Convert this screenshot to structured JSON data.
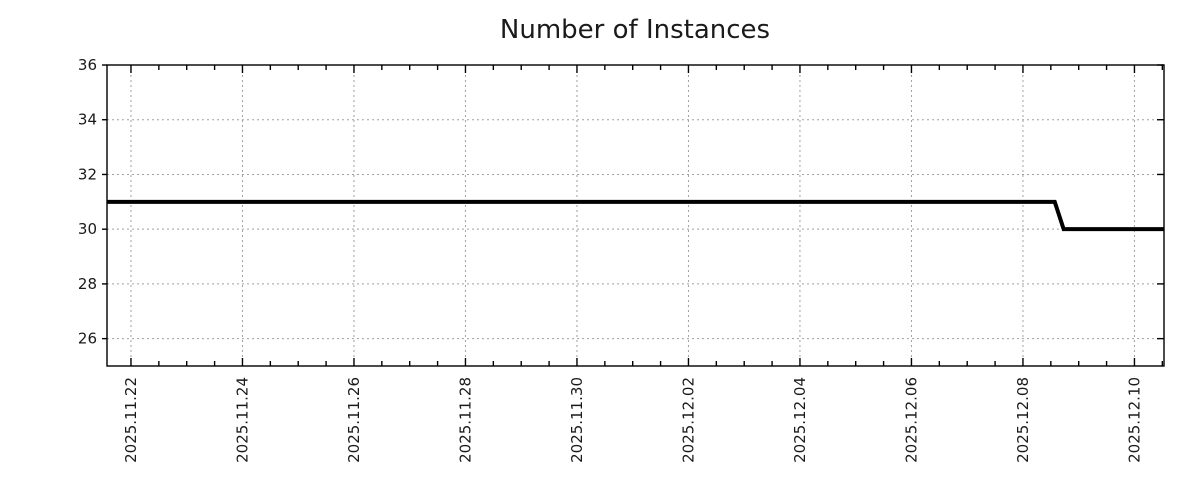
{
  "page": {
    "background_color": "#ffffff"
  },
  "chart_data": {
    "type": "line",
    "title": "Number of Instances",
    "line_style": "step",
    "legend": "none",
    "grid": {
      "show": true,
      "color": "#a0a0a0",
      "pattern": "dotted"
    },
    "axis_color": "#000000",
    "text_color": "#1a1a1a",
    "x_axis": {
      "kind": "time",
      "label": "",
      "tick_label_rotation_deg": -90,
      "range_day_offsets": [
        -0.43,
        18.53
      ],
      "minor_tick_interval_days": 0.5,
      "major_ticks": [
        {
          "day_offset": 0,
          "label": "2025.11.22"
        },
        {
          "day_offset": 2,
          "label": "2025.11.24"
        },
        {
          "day_offset": 4,
          "label": "2025.11.26"
        },
        {
          "day_offset": 6,
          "label": "2025.11.28"
        },
        {
          "day_offset": 8,
          "label": "2025.11.30"
        },
        {
          "day_offset": 10,
          "label": "2025.12.02"
        },
        {
          "day_offset": 12,
          "label": "2025.12.04"
        },
        {
          "day_offset": 14,
          "label": "2025.12.06"
        },
        {
          "day_offset": 16,
          "label": "2025.12.08"
        },
        {
          "day_offset": 18,
          "label": "2025.12.10"
        }
      ]
    },
    "y_axis": {
      "label": "",
      "range": [
        25,
        36
      ],
      "ticks": [
        26,
        28,
        30,
        32,
        34,
        36
      ]
    },
    "series": [
      {
        "name": "instances",
        "color": "#000000",
        "line_width": 4,
        "points": [
          {
            "date": "2025-11-21 13:00",
            "day_offset": -0.43,
            "value": 31
          },
          {
            "date": "2025-12-08 13:30",
            "day_offset": 16.57,
            "value": 31
          },
          {
            "date": "2025-12-08 17:30",
            "day_offset": 16.73,
            "value": 30
          },
          {
            "date": "2025-12-10 13:00",
            "day_offset": 18.53,
            "value": 30
          }
        ]
      }
    ]
  }
}
